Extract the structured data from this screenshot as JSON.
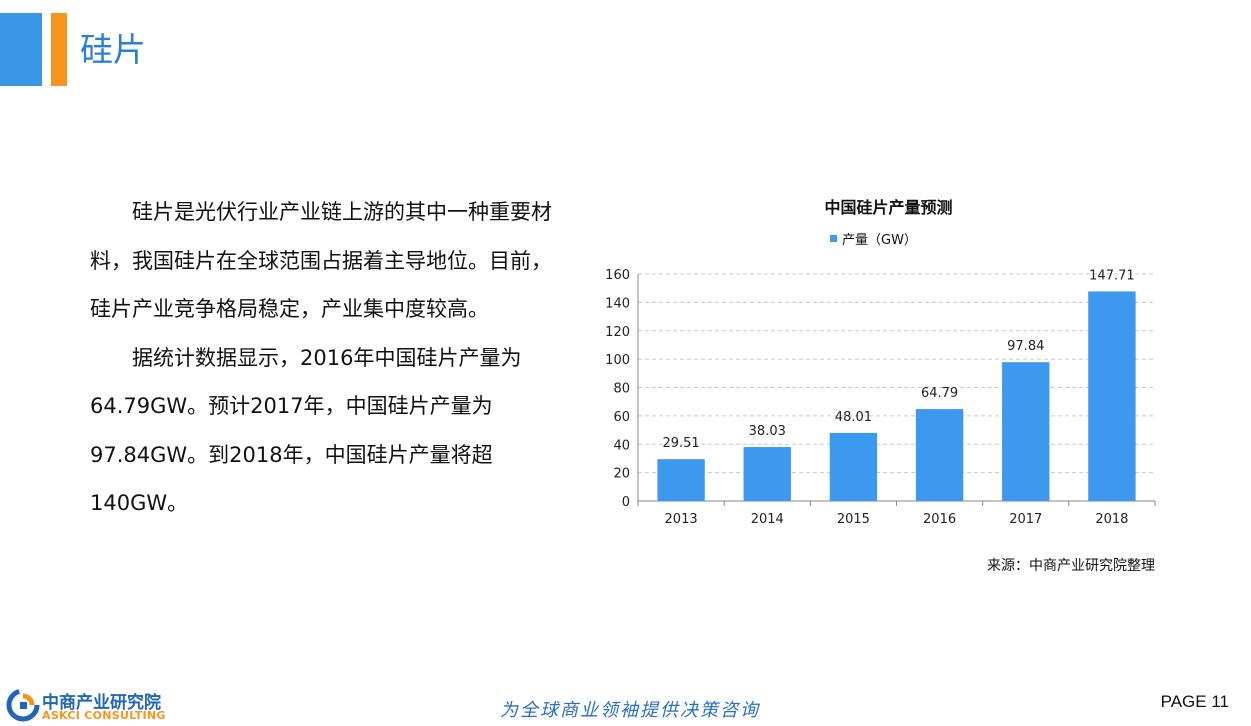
{
  "slide": {
    "title": "硅片",
    "paragraphs": [
      "硅片是光伏行业产业链上游的其中一种重要材料，我国硅片在全球范围占据着主导地位。目前，硅片产业竞争格局稳定，产业集中度较高。",
      "据统计数据显示，2016年中国硅片产量为64.79GW。预计2017年，中国硅片产量为97.84GW。到2018年，中国硅片产量将超140GW。"
    ]
  },
  "chart_data": {
    "type": "bar",
    "title": "中国硅片产量预测",
    "categories": [
      "2013",
      "2014",
      "2015",
      "2016",
      "2017",
      "2018"
    ],
    "series": [
      {
        "name": "产量（GW）",
        "values": [
          29.51,
          38.03,
          48.01,
          64.79,
          97.84,
          147.71
        ]
      }
    ],
    "data_labels": [
      "29.51",
      "38.03",
      "48.01",
      "64.79",
      "97.84",
      "147.71"
    ],
    "y_ticks": [
      "0",
      "20",
      "40",
      "60",
      "80",
      "100",
      "120",
      "140",
      "160"
    ],
    "ylim": [
      0,
      160
    ],
    "grid": true,
    "legend": "top",
    "source": "来源：中商产业研究院整理",
    "colors": {
      "bar": "#3d98ef",
      "grid": "#c8c8c8",
      "axis": "#888888"
    }
  },
  "footer": {
    "logo_cn": "中商产业研究院",
    "logo_en": "ASKCI CONSULTING",
    "slogan": "为全球商业领袖提供决策咨询",
    "page": "PAGE  11"
  },
  "colors": {
    "accent_blue": "#3a96e6",
    "accent_orange": "#f7941d",
    "title_blue": "#2a7fd4"
  }
}
